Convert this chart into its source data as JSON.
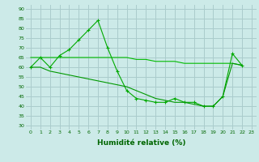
{
  "line1": {
    "x": [
      0,
      1,
      2,
      3,
      4,
      5,
      6,
      7,
      8,
      9,
      10,
      11,
      12,
      13,
      14,
      15,
      16,
      17,
      18,
      19,
      20,
      21,
      22,
      23
    ],
    "y": [
      60,
      65,
      60,
      66,
      69,
      74,
      79,
      84,
      70,
      58,
      48,
      44,
      43,
      42,
      42,
      44,
      42,
      42,
      40,
      40,
      45,
      67,
      61,
      null
    ],
    "color": "#00aa00",
    "marker": "+"
  },
  "line2": {
    "x": [
      0,
      1,
      2,
      3,
      4,
      5,
      6,
      7,
      8,
      9,
      10,
      11,
      12,
      13,
      14,
      15,
      16,
      17,
      18,
      19,
      20,
      21,
      22,
      23
    ],
    "y": [
      65,
      65,
      65,
      65,
      65,
      65,
      65,
      65,
      65,
      65,
      65,
      64,
      64,
      63,
      63,
      63,
      62,
      62,
      62,
      62,
      62,
      62,
      61,
      null
    ],
    "color": "#00bb00",
    "marker": null
  },
  "line3": {
    "x": [
      0,
      1,
      2,
      3,
      4,
      5,
      6,
      7,
      8,
      9,
      10,
      11,
      12,
      13,
      14,
      15,
      16,
      17,
      18,
      19,
      20,
      21,
      22,
      23
    ],
    "y": [
      60,
      60,
      58,
      57,
      56,
      55,
      54,
      53,
      52,
      51,
      50,
      48,
      46,
      44,
      43,
      42,
      42,
      41,
      40,
      40,
      45,
      62,
      61,
      null
    ],
    "color": "#009900",
    "marker": null
  },
  "xlim": [
    -0.5,
    23.5
  ],
  "ylim": [
    28,
    92
  ],
  "yticks": [
    30,
    35,
    40,
    45,
    50,
    55,
    60,
    65,
    70,
    75,
    80,
    85,
    90
  ],
  "xticks": [
    0,
    1,
    2,
    3,
    4,
    5,
    6,
    7,
    8,
    9,
    10,
    11,
    12,
    13,
    14,
    15,
    16,
    17,
    18,
    19,
    20,
    21,
    22,
    23
  ],
  "xlabel": "Humidité relative (%)",
  "bg_color": "#cceae8",
  "grid_color": "#aacccc",
  "xlabel_color": "#006600"
}
